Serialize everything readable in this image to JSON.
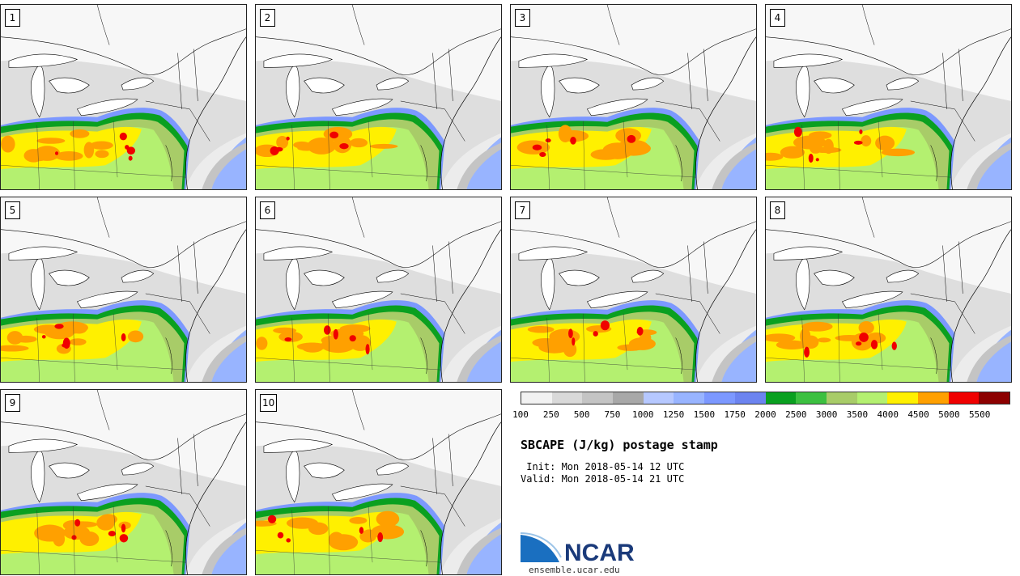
{
  "panels": [
    {
      "label": "1"
    },
    {
      "label": "2"
    },
    {
      "label": "3"
    },
    {
      "label": "4"
    },
    {
      "label": "5"
    },
    {
      "label": "6"
    },
    {
      "label": "7"
    },
    {
      "label": "8"
    },
    {
      "label": "9"
    },
    {
      "label": "10"
    }
  ],
  "colorbar": {
    "ticks": [
      "100",
      "250",
      "500",
      "750",
      "1000",
      "1250",
      "1500",
      "1750",
      "2000",
      "2500",
      "3000",
      "3500",
      "4000",
      "4500",
      "5000",
      "5500"
    ],
    "colors": [
      "#f2f2f2",
      "#d9d9d9",
      "#c4c4c4",
      "#a8a8a8",
      "#b6c8ff",
      "#98b4ff",
      "#7c98ff",
      "#6c84f0",
      "#0aa020",
      "#3cc040",
      "#a8cc68",
      "#b4f070",
      "#fff000",
      "#ffa000",
      "#f00000",
      "#8c0000"
    ]
  },
  "title": "SBCAPE (J/kg) postage stamp",
  "init": " Init: Mon 2018-05-14 12 UTC",
  "valid": "Valid: Mon 2018-05-14 21 UTC",
  "logo": {
    "text": "NCAR",
    "url": "ensemble.ucar.edu",
    "color": "#1a3a7a",
    "swoosh_color": "#1a6fc0"
  }
}
